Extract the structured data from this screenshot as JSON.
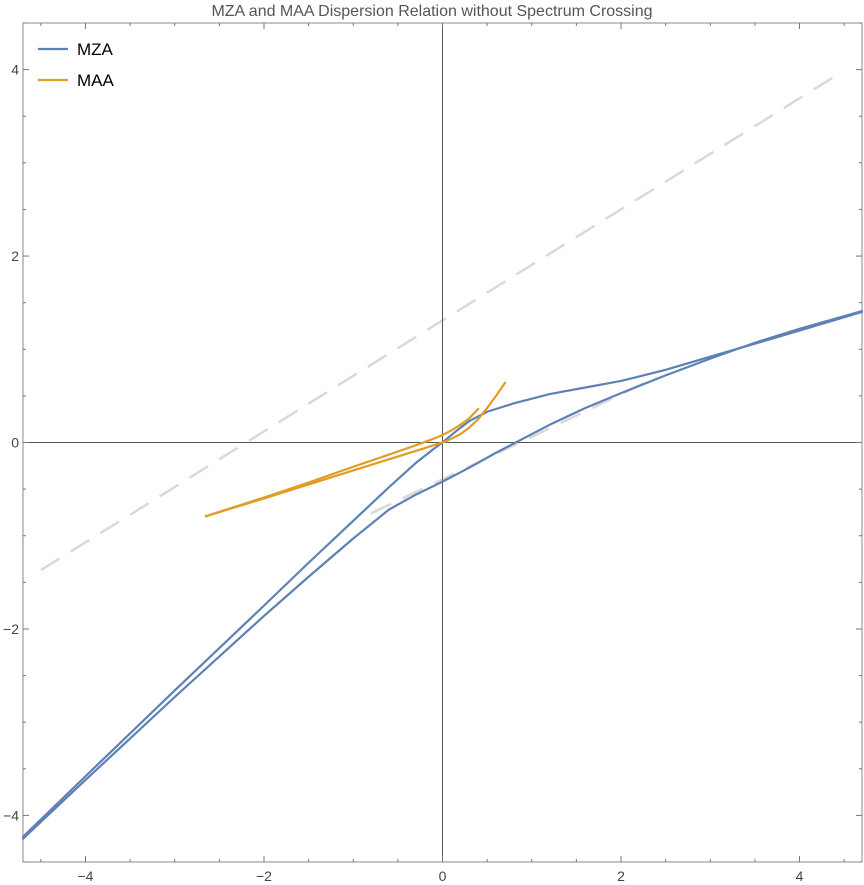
{
  "chart_data": {
    "type": "line",
    "title": "MZA and MAA Dispersion Relation without Spectrum Crossing",
    "xlabel": "",
    "ylabel": "",
    "xlim": [
      -4.7,
      4.7
    ],
    "ylim": [
      -4.5,
      4.5
    ],
    "grid": false,
    "legend_position": "top-left",
    "x_ticks": [
      -4,
      -2,
      0,
      2,
      4
    ],
    "y_ticks": [
      -4,
      -2,
      0,
      2,
      4
    ],
    "x_tick_labels": [
      "−4",
      "−2",
      "0",
      "2",
      "4"
    ],
    "y_tick_labels": [
      "−4",
      "−2",
      "0",
      "2",
      "4"
    ],
    "colors": {
      "mza": "#5E81B5",
      "maa": "#E19C24",
      "asymptote": "#D9D9D9",
      "axis": "#555555"
    },
    "series": [
      {
        "name": "MZA",
        "key": "mza",
        "segments": [
          {
            "x": [
              -4.7,
              -4.0,
              -3.0,
              -2.0,
              -1.5,
              -1.0,
              -0.6,
              -0.3,
              -0.1,
              0.0,
              0.15,
              0.3,
              0.5,
              0.8,
              1.2,
              1.6,
              2.0,
              2.5,
              3.0,
              3.5,
              4.0,
              4.7
            ],
            "y": [
              -4.23,
              -3.58,
              -2.66,
              -1.75,
              -1.29,
              -0.84,
              -0.48,
              -0.22,
              -0.07,
              0.0,
              0.12,
              0.23,
              0.33,
              0.42,
              0.52,
              0.59,
              0.66,
              0.78,
              0.92,
              1.06,
              1.2,
              1.4
            ]
          },
          {
            "x": [
              -4.7,
              -4.0,
              -3.0,
              -2.0,
              -1.5,
              -1.0,
              -0.6,
              -0.3,
              0.0,
              0.3,
              0.6,
              0.8,
              1.2,
              1.6,
              2.0,
              2.5,
              3.0,
              3.5,
              4.0,
              4.7
            ],
            "y": [
              -4.25,
              -3.62,
              -2.73,
              -1.86,
              -1.44,
              -1.03,
              -0.72,
              -0.56,
              -0.42,
              -0.27,
              -0.11,
              -0.01,
              0.19,
              0.37,
              0.53,
              0.72,
              0.9,
              1.07,
              1.22,
              1.41
            ]
          }
        ]
      },
      {
        "name": "MAA",
        "key": "maa",
        "segments": [
          {
            "x": [
              -2.65,
              -2.0,
              -1.5,
              -1.0,
              -0.6,
              -0.3,
              -0.1,
              0.0,
              0.1,
              0.2,
              0.3,
              0.4,
              0.5,
              0.6,
              0.7
            ],
            "y": [
              -0.79,
              -0.6,
              -0.45,
              -0.3,
              -0.18,
              -0.09,
              -0.03,
              0.0,
              0.04,
              0.09,
              0.16,
              0.25,
              0.37,
              0.5,
              0.64
            ]
          },
          {
            "x": [
              -2.65,
              -2.0,
              -1.5,
              -1.0,
              -0.6,
              -0.3,
              -0.1,
              0.0,
              0.1,
              0.2,
              0.3,
              0.4
            ],
            "y": [
              -0.79,
              -0.59,
              -0.43,
              -0.26,
              -0.13,
              -0.03,
              0.04,
              0.08,
              0.13,
              0.19,
              0.26,
              0.36
            ]
          }
        ]
      }
    ],
    "asymptotes": [
      {
        "x": [
          -4.5,
          4.4
        ],
        "y": [
          -1.37,
          3.93
        ]
      },
      {
        "x": [
          -0.8,
          2.4
        ],
        "y": [
          -0.76,
          0.7
        ]
      }
    ]
  }
}
